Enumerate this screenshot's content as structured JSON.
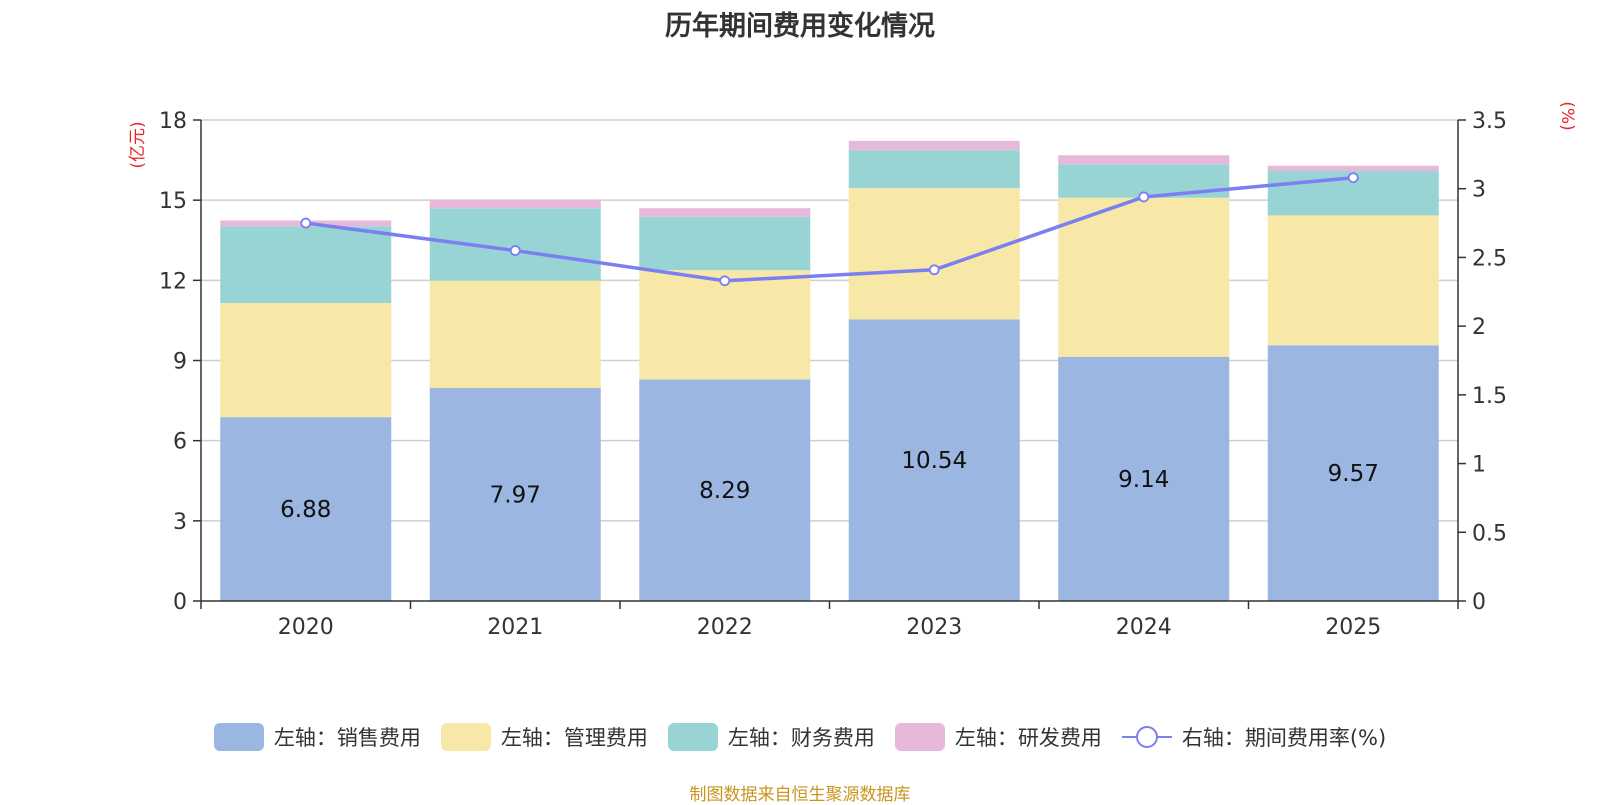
{
  "chart_data": {
    "type": "bar",
    "title": "历年期间费用变化情况",
    "categories": [
      "2020",
      "2021",
      "2022",
      "2023",
      "2024",
      "2025"
    ],
    "series": [
      {
        "name": "左轴：销售费用",
        "axis": "left",
        "color": "#9bb6e1",
        "values": [
          6.88,
          7.97,
          8.29,
          10.54,
          9.14,
          9.57
        ]
      },
      {
        "name": "左轴：管理费用",
        "axis": "left",
        "color": "#f8e8a8",
        "values": [
          4.27,
          4.02,
          4.09,
          4.91,
          5.95,
          4.86
        ]
      },
      {
        "name": "左轴：财务费用",
        "axis": "left",
        "color": "#98d4d4",
        "values": [
          2.87,
          2.71,
          2.0,
          1.42,
          1.25,
          1.66
        ]
      },
      {
        "name": "左轴：研发费用",
        "axis": "left",
        "color": "#e6b8d9",
        "values": [
          0.22,
          0.31,
          0.32,
          0.35,
          0.34,
          0.2
        ]
      },
      {
        "name": "右轴：期间费用率(%)",
        "axis": "right",
        "type": "line",
        "color": "#7b7ff0",
        "values": [
          2.75,
          2.55,
          2.33,
          2.41,
          2.94,
          3.08
        ]
      }
    ],
    "data_labels": [
      "6.88",
      "7.97",
      "8.29",
      "10.54",
      "9.14",
      "9.57"
    ],
    "left_axis": {
      "label": "(亿元)",
      "ylim": [
        0,
        18
      ],
      "ticks": [
        "0",
        "3",
        "6",
        "9",
        "12",
        "15",
        "18"
      ]
    },
    "right_axis": {
      "label": "(%)",
      "ylim": [
        0,
        3.5
      ],
      "ticks": [
        "0",
        "0.5",
        "1",
        "1.5",
        "2",
        "2.5",
        "3",
        "3.5"
      ]
    },
    "grid": true,
    "legend_position": "bottom"
  },
  "source": "制图数据来自恒生聚源数据库"
}
